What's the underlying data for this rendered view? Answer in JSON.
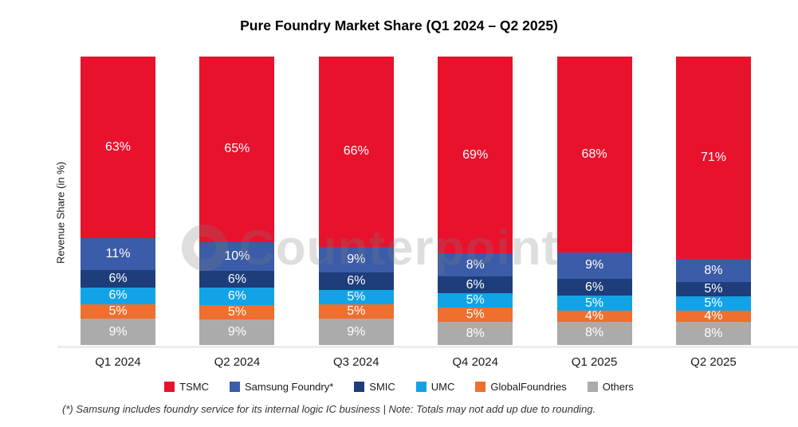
{
  "title": "Pure Foundry Market Share (Q1 2024 – Q2 2025)",
  "y_axis_label": "Revenue Share (in %)",
  "watermark_text": "Counterpoint",
  "footnote": "(*) Samsung includes foundry service for its internal logic IC business | Note: Totals may not add up due to rounding.",
  "colors": {
    "tsmc": "#e8122d",
    "samsung_foundry": "#3b5ca8",
    "smic": "#1e3d7b",
    "umc": "#12a3e6",
    "globalfoundries": "#ef6f2e",
    "others": "#ababab",
    "axis_line": "#ededed",
    "label_text": "#ffffff"
  },
  "chart_data": {
    "type": "bar",
    "stacked": true,
    "normalized_to_100": true,
    "title": "Pure Foundry Market Share (Q1 2024 – Q2 2025)",
    "xlabel": "",
    "ylabel": "Revenue Share (in %)",
    "ylim": [
      0,
      100
    ],
    "grid": false,
    "legend_position": "bottom",
    "value_suffix": "%",
    "categories": [
      "Q1 2024",
      "Q2 2024",
      "Q3 2024",
      "Q4 2024",
      "Q1 2025",
      "Q2 2025"
    ],
    "series": [
      {
        "name": "TSMC",
        "color": "#e8122d",
        "values": [
          63,
          65,
          66,
          69,
          68,
          71
        ]
      },
      {
        "name": "Samsung Foundry*",
        "color": "#3b5ca8",
        "values": [
          11,
          10,
          9,
          8,
          9,
          8
        ]
      },
      {
        "name": "SMIC",
        "color": "#1e3d7b",
        "values": [
          6,
          6,
          6,
          6,
          6,
          5
        ]
      },
      {
        "name": "UMC",
        "color": "#12a3e6",
        "values": [
          6,
          6,
          5,
          5,
          5,
          5
        ]
      },
      {
        "name": "GlobalFoundries",
        "color": "#ef6f2e",
        "values": [
          5,
          5,
          5,
          5,
          4,
          4
        ]
      },
      {
        "name": "Others",
        "color": "#ababab",
        "values": [
          9,
          9,
          9,
          8,
          8,
          8
        ]
      }
    ]
  }
}
